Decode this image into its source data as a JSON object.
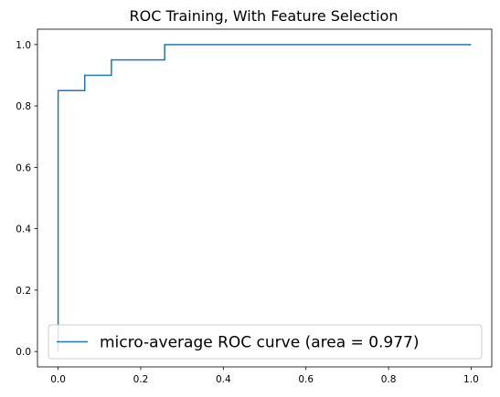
{
  "chart_data": {
    "type": "line",
    "title": "ROC Training, With Feature Selection",
    "xlabel": "",
    "ylabel": "",
    "xlim": [
      -0.05,
      1.05
    ],
    "ylim": [
      -0.05,
      1.05
    ],
    "x_ticks": [
      0.0,
      0.2,
      0.4,
      0.6,
      0.8,
      1.0
    ],
    "x_tick_labels": [
      "0.0",
      "0.2",
      "0.4",
      "0.6",
      "0.8",
      "1.0"
    ],
    "y_ticks": [
      0.0,
      0.2,
      0.4,
      0.6,
      0.8,
      1.0
    ],
    "y_tick_labels": [
      "0.0",
      "0.2",
      "0.4",
      "0.6",
      "0.8",
      "1.0"
    ],
    "grid": false,
    "legend_position": "lower-right",
    "series": [
      {
        "name": "micro-average ROC curve (area = 0.977)",
        "color": "#1f77b4",
        "x": [
          0.0,
          0.0,
          0.0645,
          0.0645,
          0.129,
          0.129,
          0.258,
          0.258,
          1.0
        ],
        "y": [
          0.0,
          0.85,
          0.85,
          0.9,
          0.9,
          0.95,
          0.95,
          1.0,
          1.0
        ]
      }
    ]
  }
}
